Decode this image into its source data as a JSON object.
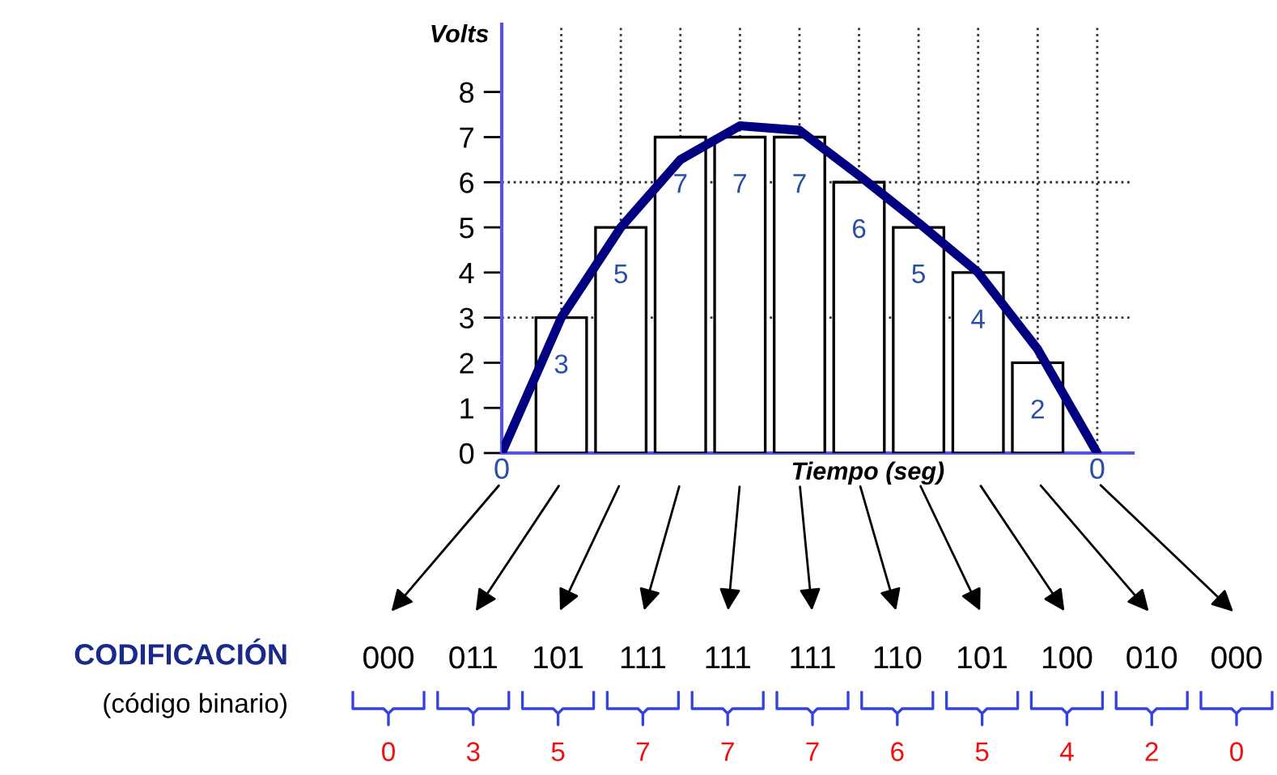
{
  "chart_data": {
    "type": "bar",
    "ylabel": "Volts",
    "xlabel": "Tiempo (seg)",
    "series": [
      {
        "color": "#ffffff",
        "values": [
          null,
          3,
          5,
          7,
          7,
          7,
          6,
          5,
          4,
          2,
          null
        ],
        "value_labels": [
          null,
          "3",
          "5",
          "7",
          "7",
          "7",
          "6",
          "5",
          "4",
          "2",
          null
        ]
      },
      {
        "type": "line",
        "color": "#000080",
        "values": [
          0,
          3.0,
          5.0,
          6.5,
          7.25,
          7.15,
          6.15,
          5.1,
          4.0,
          2.3,
          0
        ]
      }
    ],
    "categories": [
      "0",
      null,
      null,
      null,
      null,
      null,
      null,
      null,
      null,
      null,
      "0"
    ],
    "ylim": [
      0,
      9.5
    ],
    "yticks": [
      0,
      1,
      2,
      3,
      4,
      5,
      6,
      7,
      8
    ],
    "grid": "x",
    "ref_lines": [
      {
        "axis": "y",
        "value": 3,
        "line_style": "dotted"
      },
      {
        "axis": "y",
        "value": 6,
        "line_style": "dotted"
      }
    ],
    "annotations": [
      "CODIFICACIÓN",
      "(código binario)",
      "000",
      "011",
      "101",
      "111",
      "111",
      "111",
      "110",
      "101",
      "100",
      "010",
      "000",
      "0",
      "3",
      "5",
      "7",
      "7",
      "7",
      "6",
      "5",
      "4",
      "2",
      "0"
    ]
  }
}
